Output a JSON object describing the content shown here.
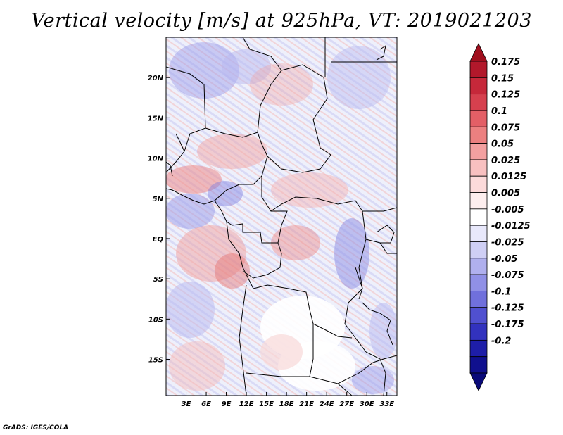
{
  "title": "Vertical velocity [m/s] at 925hPa, VT: 2019021203",
  "footer": "GrADS: IGES/COLA",
  "map": {
    "lon_labels": [
      "3E",
      "6E",
      "9E",
      "12E",
      "15E",
      "18E",
      "21E",
      "24E",
      "27E",
      "30E",
      "33E"
    ],
    "lon_values": [
      3,
      6,
      9,
      12,
      15,
      18,
      21,
      24,
      27,
      30,
      33
    ],
    "lat_labels": [
      "20N",
      "15N",
      "10N",
      "5N",
      "EQ",
      "5S",
      "10S",
      "15S"
    ],
    "lat_values": [
      20,
      15,
      10,
      5,
      0,
      -5,
      -10,
      -15
    ],
    "lon_range": [
      0,
      34.5
    ],
    "lat_range": [
      -19.5,
      25
    ]
  },
  "colorbar": {
    "labels": [
      "0.175",
      "0.15",
      "0.125",
      "0.1",
      "0.075",
      "0.05",
      "0.025",
      "0.0125",
      "0.005",
      "-0.005",
      "-0.0125",
      "-0.025",
      "-0.05",
      "-0.075",
      "-0.1",
      "-0.125",
      "-0.175",
      "-0.2"
    ],
    "colors": [
      "#b2182b",
      "#c6283a",
      "#d6404e",
      "#e35f66",
      "#ec8080",
      "#f3a0a0",
      "#f8c0c0",
      "#fcdada",
      "#fdeeee",
      "#ffffff",
      "#e8e8fb",
      "#cfcff5",
      "#b0b0ee",
      "#9090e6",
      "#7070dc",
      "#5050d0",
      "#3232be",
      "#1e1ea8",
      "#10108e"
    ],
    "top_tip": "#a00f1e",
    "bottom_tip": "#0a0a78"
  }
}
